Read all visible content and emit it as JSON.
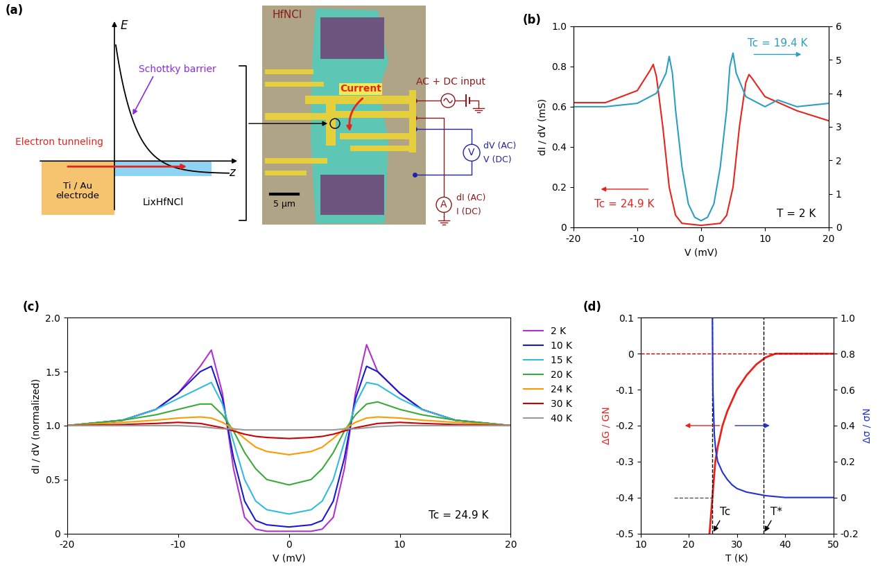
{
  "diagram": {
    "panel": "(a)",
    "band": {
      "energy_axis": "E",
      "position_axis": "z",
      "barrier": "Schottky barrier",
      "tunneling": "Electron tunneling",
      "electrode": "Ti / Au\nelectrode",
      "sample": "LixHfNCl"
    },
    "device": {
      "material": "HfNCl",
      "current": "Current",
      "source": "AC + DC input",
      "voltmeter": "V",
      "voltmeter_ac": "dV (AC)",
      "voltmeter_dc": "V (DC)",
      "ammeter": "A",
      "ammeter_ac": "dI (AC)",
      "ammeter_dc": "I (DC)",
      "scale_bar": "5 μm"
    }
  },
  "chart_data": [
    {
      "type": "line",
      "title": "(b)",
      "xlabel": "V (mV)",
      "ylabel": "dI / dV (mS)",
      "xlim": [
        -20,
        20
      ],
      "xticks": [
        -20,
        -10,
        0,
        10,
        20
      ],
      "ylim": [
        0,
        1
      ],
      "yticks": [
        0,
        0.2,
        0.4,
        0.6,
        0.8,
        {
          "value": 1,
          "label": "1.0"
        }
      ],
      "y2lim": [
        0,
        6
      ],
      "y2ticks": [
        0,
        1,
        2,
        3,
        4,
        5,
        6
      ],
      "annotations": [
        "T = 2 K"
      ],
      "series": [
        {
          "name": "Tc = 24.9 K",
          "color": "#e8231e",
          "x": [
            -20,
            -15,
            -10,
            -8,
            -7.5,
            -7,
            -6,
            -5,
            -4,
            -3,
            0,
            3,
            4,
            5,
            6,
            7,
            7.5,
            8,
            10,
            15,
            20
          ],
          "values": [
            0.62,
            0.62,
            0.68,
            0.78,
            0.81,
            0.75,
            0.5,
            0.2,
            0.06,
            0.02,
            0.01,
            0.02,
            0.06,
            0.2,
            0.5,
            0.72,
            0.76,
            0.74,
            0.65,
            0.58,
            0.53
          ]
        },
        {
          "name": "Tc = 19.4 K",
          "color": "#2a9fc0",
          "axis": "y2",
          "x": [
            -20,
            -15,
            -10,
            -7,
            -5.5,
            -5,
            -4.5,
            -4,
            -3,
            -2,
            -1,
            0,
            1,
            2,
            3,
            4,
            4.5,
            5,
            5.5,
            7,
            10,
            12,
            15,
            20
          ],
          "values": [
            3.6,
            3.6,
            3.7,
            4.0,
            4.6,
            5.1,
            4.6,
            3.5,
            1.8,
            0.7,
            0.3,
            0.2,
            0.3,
            0.7,
            1.8,
            3.5,
            4.8,
            5.2,
            4.6,
            3.9,
            3.6,
            3.8,
            3.6,
            3.7
          ]
        }
      ]
    },
    {
      "type": "line",
      "title": "(c)",
      "xlabel": "V (mV)",
      "ylabel": "dI / dV (normalized)",
      "xlim": [
        -20,
        20
      ],
      "xticks": [
        -20,
        -10,
        0,
        10,
        20
      ],
      "ylim": [
        0,
        2
      ],
      "yticks": [
        0,
        0.5,
        {
          "value": 1,
          "label": "1.0"
        },
        1.5,
        {
          "value": 2,
          "label": "2.0"
        }
      ],
      "annotations": [
        "Tc = 24.9 K"
      ],
      "legend": "right",
      "x": [
        -20,
        -15,
        -12,
        -10,
        -8,
        -7,
        -6,
        -5,
        -4,
        -3,
        -2,
        0,
        2,
        3,
        4,
        5,
        6,
        7,
        8,
        10,
        12,
        15,
        20
      ],
      "series": [
        {
          "name": "2 K",
          "color": "#b030d0",
          "values": [
            1.0,
            1.05,
            1.15,
            1.3,
            1.55,
            1.7,
            1.3,
            0.6,
            0.15,
            0.04,
            0.02,
            0.02,
            0.02,
            0.04,
            0.15,
            0.6,
            1.3,
            1.75,
            1.5,
            1.3,
            1.15,
            1.05,
            1.0
          ]
        },
        {
          "name": "10 K",
          "color": "#1a1acc",
          "values": [
            1.0,
            1.05,
            1.15,
            1.3,
            1.5,
            1.55,
            1.25,
            0.7,
            0.3,
            0.12,
            0.08,
            0.06,
            0.08,
            0.12,
            0.3,
            0.7,
            1.25,
            1.55,
            1.5,
            1.3,
            1.15,
            1.05,
            1.0
          ]
        },
        {
          "name": "15 K",
          "color": "#33bbdd",
          "values": [
            1.0,
            1.05,
            1.15,
            1.25,
            1.35,
            1.4,
            1.2,
            0.85,
            0.5,
            0.3,
            0.22,
            0.18,
            0.22,
            0.3,
            0.5,
            0.85,
            1.2,
            1.4,
            1.38,
            1.25,
            1.15,
            1.05,
            1.0
          ]
        },
        {
          "name": "20 K",
          "color": "#3aaa3a",
          "values": [
            1.0,
            1.05,
            1.1,
            1.15,
            1.2,
            1.2,
            1.1,
            0.95,
            0.75,
            0.6,
            0.5,
            0.45,
            0.5,
            0.6,
            0.75,
            0.95,
            1.1,
            1.2,
            1.22,
            1.15,
            1.1,
            1.05,
            1.0
          ]
        },
        {
          "name": "24 K",
          "color": "#ff9900",
          "values": [
            1.0,
            1.03,
            1.05,
            1.07,
            1.08,
            1.07,
            1.03,
            0.97,
            0.88,
            0.8,
            0.76,
            0.73,
            0.76,
            0.8,
            0.88,
            0.97,
            1.03,
            1.07,
            1.08,
            1.07,
            1.05,
            1.03,
            1.0
          ]
        },
        {
          "name": "30 K",
          "color": "#cc0000",
          "values": [
            1.0,
            1.01,
            1.02,
            1.03,
            1.02,
            1.0,
            0.98,
            0.95,
            0.92,
            0.9,
            0.89,
            0.88,
            0.89,
            0.9,
            0.92,
            0.95,
            0.98,
            1.0,
            1.02,
            1.03,
            1.02,
            1.01,
            1.0
          ]
        },
        {
          "name": "40 K",
          "color": "#999999",
          "values": [
            1.0,
            1.0,
            1.0,
            1.0,
            0.99,
            0.98,
            0.97,
            0.97,
            0.96,
            0.96,
            0.96,
            0.96,
            0.96,
            0.96,
            0.96,
            0.97,
            0.97,
            0.98,
            0.99,
            1.0,
            1.0,
            1.0,
            1.0
          ]
        }
      ]
    },
    {
      "type": "line",
      "title": "(d)",
      "xlabel": "T (K)",
      "ylabel": "ΔG / GN",
      "y2label": "Δσ / σN",
      "xlim": [
        10,
        50
      ],
      "xticks": [
        10,
        20,
        30,
        40,
        50
      ],
      "ylim": [
        -0.5,
        0.1
      ],
      "yticks": [
        -0.5,
        -0.4,
        -0.3,
        -0.2,
        -0.1,
        0,
        0.1
      ],
      "y2lim": [
        -0.2,
        1
      ],
      "y2ticks": [
        -0.2,
        0,
        0.2,
        0.4,
        0.6,
        0.8,
        {
          "value": 1,
          "label": "1.0"
        }
      ],
      "markers": [
        {
          "label": "Tc",
          "value": 24.9
        },
        {
          "label": "T*",
          "value": 35.5
        }
      ],
      "hlines": [
        {
          "value": 0,
          "color": "#c00000"
        },
        {
          "value": -0.4,
          "color": "#555555",
          "xmin": 17
        }
      ],
      "series": [
        {
          "name": "ΔG / GN",
          "color": "#e8231e",
          "x": [
            24.3,
            24.9,
            25.5,
            26,
            27,
            28,
            29,
            30,
            31,
            32,
            34,
            36,
            38,
            40,
            45,
            50
          ],
          "values": [
            -0.5,
            -0.4,
            -0.3,
            -0.26,
            -0.2,
            -0.16,
            -0.13,
            -0.1,
            -0.08,
            -0.06,
            -0.03,
            -0.01,
            0,
            0,
            0,
            0
          ]
        },
        {
          "name": "Δσ / σN",
          "color": "#2233cc",
          "axis": "y2",
          "x": [
            24.9,
            25,
            25.3,
            25.6,
            26,
            27,
            28,
            29,
            30,
            32,
            34,
            36,
            38,
            40,
            45,
            50
          ],
          "values": [
            1.0,
            0.6,
            0.35,
            0.26,
            0.2,
            0.14,
            0.1,
            0.07,
            0.05,
            0.03,
            0.02,
            0.01,
            0.005,
            0,
            0,
            0
          ]
        }
      ]
    }
  ]
}
